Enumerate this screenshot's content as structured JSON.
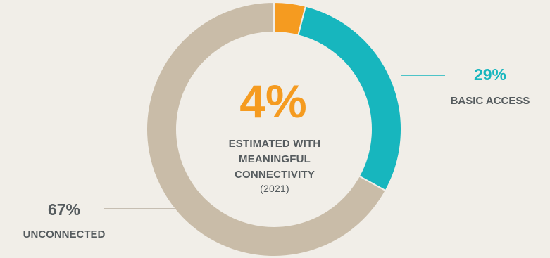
{
  "chart_data": {
    "type": "pie",
    "slices": [
      {
        "label": "",
        "value": 4,
        "color": "#f59b20",
        "pct_label": ""
      },
      {
        "label": "BASIC ACCESS",
        "value": 29,
        "color": "#17b6be",
        "pct_label": "29%"
      },
      {
        "label": "UNCONNECTED",
        "value": 67,
        "color": "#c9bca8",
        "pct_label": "67%"
      }
    ],
    "center": {
      "value": "4%",
      "label_lines": [
        "ESTIMATED WITH",
        "MEANINGFUL",
        "CONNECTIVITY"
      ],
      "year": "(2021)"
    }
  },
  "colors": {
    "background": "#f1eee8",
    "accent": "#f59b20",
    "teal": "#17b6be",
    "grey_slice": "#c9bca8",
    "text": "#555b5e",
    "leader": "#b8aea0"
  }
}
